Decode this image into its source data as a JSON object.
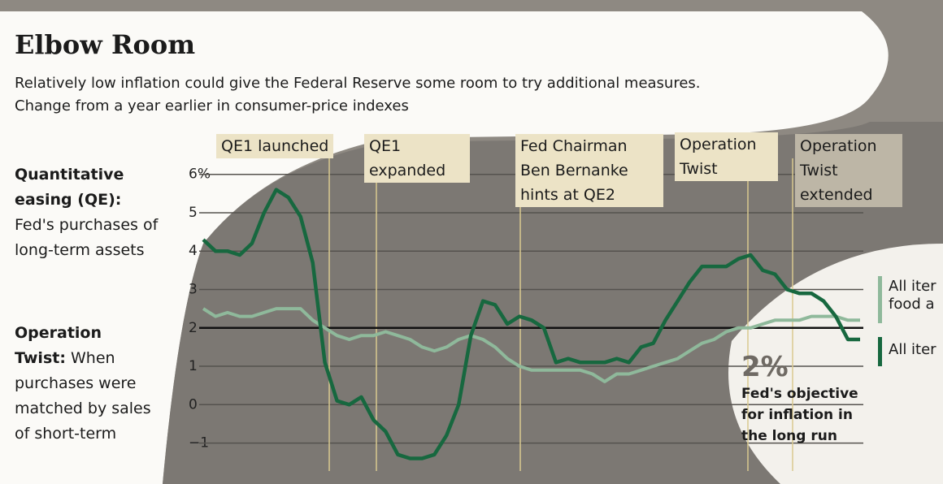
{
  "chart_data": {
    "type": "line",
    "title": "Elbow Room",
    "subtitle": [
      "Relatively low inflation could give the Federal Reserve some room to try additional measures.",
      "Change from a year earlier in consumer-price indexes"
    ],
    "notes": [
      {
        "heading": "Quantitative easing (QE):",
        "text": "Fed's purchases of long-term assets"
      },
      {
        "heading": "Operation Twist:",
        "text": "When purchases were matched by sales of short-term"
      }
    ],
    "annotations": [
      "QE1 launched",
      "QE1 expanded",
      "Fed Chairman Ben Bernanke hints at QE2",
      "Operation Twist",
      "Operation Twist extended"
    ],
    "reference": {
      "value": 2,
      "label": "2%",
      "text": "Fed's objective for inflation in the long run"
    },
    "ylim": [
      -1.2,
      6.5
    ],
    "yticks": [
      {
        "value": 6,
        "label": "6%"
      },
      5,
      4,
      3,
      2,
      1,
      0,
      {
        "value": -1,
        "label": "−1"
      }
    ],
    "grid": true,
    "series": [
      {
        "name": "All iter food a",
        "color": "#8fb99b",
        "values": [
          2.5,
          2.3,
          2.4,
          2.3,
          2.3,
          2.4,
          2.5,
          2.5,
          2.5,
          2.2,
          2.0,
          1.8,
          1.7,
          1.8,
          1.8,
          1.9,
          1.8,
          1.7,
          1.5,
          1.4,
          1.5,
          1.7,
          1.8,
          1.7,
          1.5,
          1.2,
          1.0,
          0.9,
          0.9,
          0.9,
          0.9,
          0.9,
          0.8,
          0.6,
          0.8,
          0.8,
          0.9,
          1.0,
          1.1,
          1.2,
          1.4,
          1.6,
          1.7,
          1.9,
          2.0,
          2.0,
          2.1,
          2.2,
          2.2,
          2.2,
          2.3,
          2.3,
          2.3,
          2.2,
          2.2
        ]
      },
      {
        "name": "All iter",
        "color": "#17683f",
        "values": [
          4.3,
          4.0,
          4.0,
          3.9,
          4.2,
          5.0,
          5.6,
          5.4,
          4.9,
          3.7,
          1.1,
          0.1,
          0.0,
          0.2,
          -0.4,
          -0.7,
          -1.3,
          -1.4,
          -1.4,
          -1.3,
          -0.8,
          0.0,
          1.8,
          2.7,
          2.6,
          2.1,
          2.3,
          2.2,
          2.0,
          1.1,
          1.2,
          1.1,
          1.1,
          1.1,
          1.2,
          1.1,
          1.5,
          1.6,
          2.2,
          2.7,
          3.2,
          3.6,
          3.6,
          3.6,
          3.8,
          3.9,
          3.5,
          3.4,
          3.0,
          2.9,
          2.9,
          2.7,
          2.3,
          1.7,
          1.7
        ]
      }
    ]
  }
}
